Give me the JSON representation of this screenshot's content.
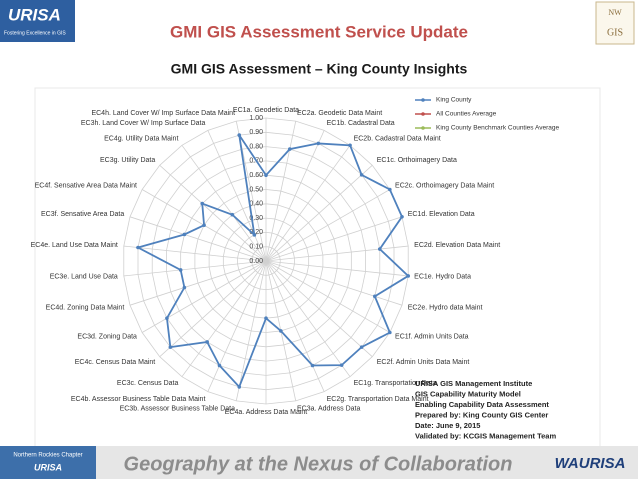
{
  "slide": {
    "title": "GMI GIS Assessment Service Update",
    "subtitle": "GMI GIS Assessment – King County Insights",
    "footer": "Geography at the Nexus of Collaboration",
    "logo_left": "URISA",
    "logo_left_tagline": "Fostering Excellence in GIS",
    "logo_right_top": "NW",
    "logo_right_bottom": "GIS",
    "chapter_line1": "Northern Rockies Chapter",
    "chapter_line2": "URISA",
    "logo_bottom_right": "WAURISA",
    "info": [
      "URISA GIS Management Institute",
      "GIS Capability Maturity Model",
      "Enabling Capability Data Assessment",
      "Prepared by: King County GIS Center",
      "Date: June 9, 2015",
      "Validated by: KCGIS Management Team"
    ]
  },
  "chart_data": {
    "type": "radar",
    "categories": [
      "EC1a. Geodetic Data",
      "EC2a. Geodetic Data Maint",
      "EC1b. Cadastral Data",
      "EC2b. Cadastral Data Maint",
      "EC1c. Orthoimagery Data",
      "EC2c. Orthoimagery Data Maint",
      "EC1d. Elevation Data",
      "EC2d. Elevation Data Maint",
      "EC1e. Hydro Data",
      "EC2e. Hydro data Maint",
      "EC1f. Admin Units Data",
      "EC2f. Admin Units Data Maint",
      "EC1g. Transportation Data",
      "EC2g. Transportation Data Maint",
      "EC3a. Address Data",
      "EC4a. Address Data Maint",
      "EC3b. Assessor Business Table Data",
      "EC4b. Assessor Business Table Data Maint",
      "EC3c. Census Data",
      "EC4c. Census Data Maint",
      "EC3d. Zoning Data",
      "EC4d. Zoning Data Maint",
      "EC3e. Land Use Data",
      "EC4e. Land Use Data Maint",
      "EC3f. Sensative Area Data",
      "EC4f. Sensative Area Data Maint",
      "EC3g. Utility Data",
      "EC4g. Utility Data Maint",
      "EC3h. Land Cover W/ Imp Surface Data",
      "EC4h. Land Cover W/ Imp Surface Data Maint"
    ],
    "series": [
      {
        "name": "King County",
        "color": "#4f81bd",
        "values": [
          0.6,
          0.8,
          0.9,
          1.0,
          0.9,
          1.0,
          1.0,
          0.8,
          1.0,
          0.8,
          1.0,
          0.9,
          0.9,
          0.8,
          0.5,
          0.4,
          0.9,
          0.8,
          0.7,
          0.9,
          0.8,
          0.6,
          0.6,
          0.9,
          0.6,
          0.5,
          0.6,
          0.4,
          0.2,
          0.9
        ]
      },
      {
        "name": "All Counties Average",
        "color": "#c0504d",
        "values": [
          null,
          null,
          null,
          null,
          null,
          null,
          null,
          null,
          null,
          null,
          null,
          null,
          null,
          null,
          null,
          null,
          null,
          null,
          null,
          null,
          null,
          null,
          null,
          null,
          null,
          null,
          null,
          null,
          null,
          null
        ]
      },
      {
        "name": "King County Benchmark Counties Average",
        "color": "#9bbb59",
        "values": [
          null,
          null,
          null,
          null,
          null,
          null,
          null,
          null,
          null,
          null,
          null,
          null,
          null,
          null,
          null,
          null,
          null,
          null,
          null,
          null,
          null,
          null,
          null,
          null,
          null,
          null,
          null,
          null,
          null,
          null
        ]
      }
    ],
    "rlim": [
      0,
      1
    ],
    "rticks": [
      {
        "value": 0,
        "label": "0.00"
      },
      {
        "value": 0.1,
        "label": "0.10"
      },
      {
        "value": 0.2,
        "label": "0.20"
      },
      {
        "value": 0.3,
        "label": "0.30"
      },
      {
        "value": 0.4,
        "label": "0.40"
      },
      {
        "value": 0.5,
        "label": "0.50"
      },
      {
        "value": 0.6,
        "label": "0.60"
      },
      {
        "value": 0.7,
        "label": "0.70"
      },
      {
        "value": 0.8,
        "label": "0.80"
      },
      {
        "value": 0.9,
        "label": "0.90"
      },
      {
        "value": 1,
        "label": "1.00"
      }
    ],
    "grid": true,
    "legend": "top-right"
  }
}
